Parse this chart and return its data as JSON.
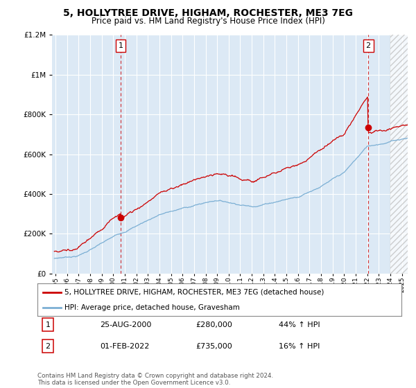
{
  "title": "5, HOLLYTREE DRIVE, HIGHAM, ROCHESTER, ME3 7EG",
  "subtitle": "Price paid vs. HM Land Registry's House Price Index (HPI)",
  "legend_label_red": "5, HOLLYTREE DRIVE, HIGHAM, ROCHESTER, ME3 7EG (detached house)",
  "legend_label_blue": "HPI: Average price, detached house, Gravesham",
  "annotation1_num": "1",
  "annotation1_date": "25-AUG-2000",
  "annotation1_price": "£280,000",
  "annotation1_hpi": "44% ↑ HPI",
  "annotation2_num": "2",
  "annotation2_date": "01-FEB-2022",
  "annotation2_price": "£735,000",
  "annotation2_hpi": "16% ↑ HPI",
  "footnote": "Contains HM Land Registry data © Crown copyright and database right 2024.\nThis data is licensed under the Open Government Licence v3.0.",
  "ylim": [
    0,
    1200000
  ],
  "yticks": [
    0,
    200000,
    400000,
    600000,
    800000,
    1000000,
    1200000
  ],
  "background_color": "#ffffff",
  "plot_bg_color": "#dce9f5",
  "grid_color": "#ffffff",
  "red_color": "#cc0000",
  "blue_color": "#7bafd4",
  "sale1_year": 2000.646,
  "sale1_price": 280000,
  "sale2_year": 2022.083,
  "sale2_price": 735000,
  "xmin": 1994.7,
  "xmax": 2025.5,
  "hatch_start": 2024.0
}
